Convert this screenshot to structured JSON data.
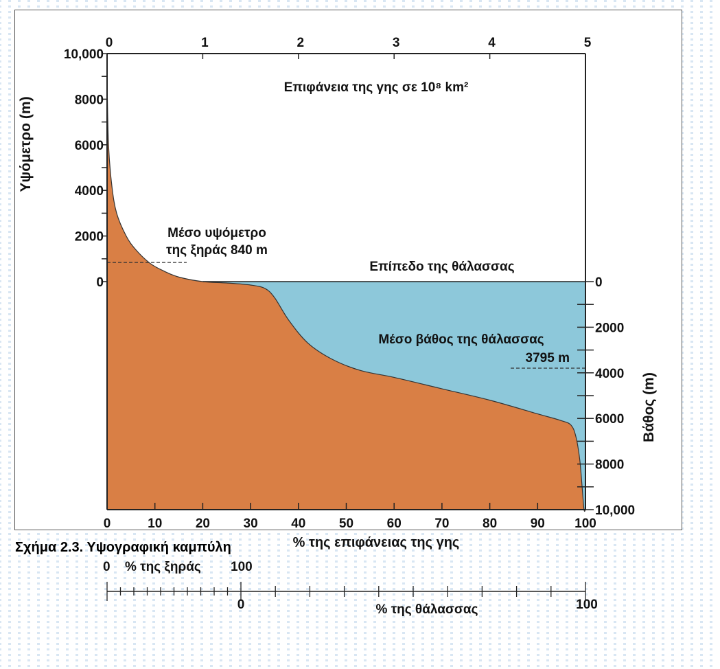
{
  "caption": "Σχήμα 2.3. Υψογραφική καμπύλη",
  "colors": {
    "land": "#d97f45",
    "sea": "#8dc8da",
    "background_stripes": "#d8e6f3",
    "frame": "#555555"
  },
  "chart_data": {
    "type": "area",
    "title": "Επιφάνεια της γης σε 10⁸ km²",
    "top_axis": {
      "label": "Επιφάνεια της γης σε 10⁸ km²",
      "ticks": [
        "0",
        "1",
        "2",
        "3",
        "4",
        "5"
      ],
      "range": [
        0,
        5
      ]
    },
    "x_axis": {
      "label": "% της επιφάνειας της γης",
      "ticks": [
        "0",
        "10",
        "20",
        "30",
        "40",
        "50",
        "60",
        "70",
        "80",
        "90",
        "100"
      ],
      "range": [
        0,
        100
      ]
    },
    "left_axis": {
      "label": "Υψόμετρο (m)",
      "ticks": [
        "10,000",
        "8000",
        "6000",
        "4000",
        "2000",
        "0"
      ],
      "range": [
        0,
        10000
      ]
    },
    "right_axis": {
      "label": "Βάθος (m)",
      "ticks": [
        "0",
        "2000",
        "4000",
        "6000",
        "8000",
        "10,000"
      ],
      "range": [
        0,
        10000
      ]
    },
    "land_scale": {
      "label": "% της ξηράς",
      "start_label": "0",
      "end_label": "100"
    },
    "sea_scale": {
      "label": "% της θάλασσας",
      "start_label": "0",
      "end_label": "100"
    },
    "curve": {
      "x_percent": [
        0,
        0.3,
        1,
        2,
        4,
        6,
        9,
        12,
        15,
        20,
        25,
        30,
        33,
        35,
        38,
        42,
        47,
        53,
        60,
        70,
        80,
        90,
        95,
        97,
        98,
        98.8,
        99.3,
        99.7,
        100
      ],
      "elevation_m": [
        8800,
        6000,
        4200,
        3000,
        2000,
        1400,
        800,
        450,
        200,
        0,
        -60,
        -150,
        -300,
        -700,
        -1700,
        -2700,
        -3400,
        -3900,
        -4200,
        -4700,
        -5200,
        -5800,
        -6100,
        -6300,
        -6800,
        -7800,
        -9000,
        -10000,
        -10000
      ]
    },
    "annotations": {
      "mean_land_elevation_line1": "Μέσο υψόμετρο",
      "mean_land_elevation_line2": "της ξηράς 840 m",
      "mean_land_elevation_value": 840,
      "sea_level": "Επίπεδο της θάλασσας",
      "mean_sea_depth_line1": "Μέσο βάθος της θάλασσας",
      "mean_sea_depth_line2": "3795 m",
      "mean_sea_depth_value": 3795
    }
  }
}
